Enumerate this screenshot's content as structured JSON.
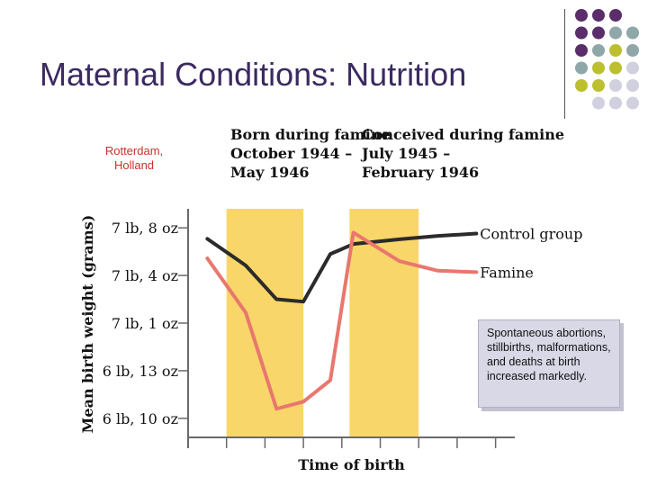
{
  "slide": {
    "title": "Maternal Conditions: Nutrition",
    "location": "Rotterdam, Holland",
    "note": "Spontaneous abortions, stillbirths, malformations, and deaths at birth increased markedly."
  },
  "colors": {
    "title": "#3b2a60",
    "band": "#f9d66a",
    "control": "#2b2b2b",
    "famine": "#e8776e",
    "dot_purple": "#5a2d6b",
    "dot_gray": "#8fa7a8",
    "dot_olive": "#bcbf2e",
    "dot_lilac": "#d0d0de"
  },
  "chart_data": {
    "type": "line",
    "xlabel": "Time of birth",
    "ylabel": "Mean birth weight (grams)",
    "y_ticks": [
      {
        "label": "7 lb, 8 oz",
        "value": 3400
      },
      {
        "label": "7 lb, 4 oz",
        "value": 3300
      },
      {
        "label": "7 lb, 1 oz",
        "value": 3200
      },
      {
        "label": "6 lb, 13 oz",
        "value": 3100
      },
      {
        "label": "6 lb, 10 oz",
        "value": 3000
      }
    ],
    "ylim": [
      2960,
      3440
    ],
    "x_ticks": [
      0,
      1,
      2,
      3,
      4,
      5,
      6,
      7,
      8
    ],
    "xlim": [
      0,
      8.5
    ],
    "shaded_periods": [
      {
        "label": "Born during famine\nOctober 1944 –\nMay 1946",
        "start": 1,
        "end": 3
      },
      {
        "label": "Conceived during famine\nJuly 1945 –\nFebruary 1946",
        "start": 4.2,
        "end": 6
      }
    ],
    "series": [
      {
        "name": "Control group",
        "x": [
          0.5,
          1.5,
          2.3,
          3.0,
          3.7,
          4.3,
          5.5,
          6.5,
          7.5
        ],
        "y": [
          3377,
          3321,
          3250,
          3245,
          3345,
          3366,
          3376,
          3383,
          3388
        ]
      },
      {
        "name": "Famine",
        "x": [
          0.5,
          1.5,
          2.3,
          3.0,
          3.7,
          4.3,
          5.5,
          6.5,
          7.5
        ],
        "y": [
          3336,
          3222,
          3020,
          3035,
          3080,
          3390,
          3330,
          3310,
          3307
        ]
      }
    ]
  }
}
